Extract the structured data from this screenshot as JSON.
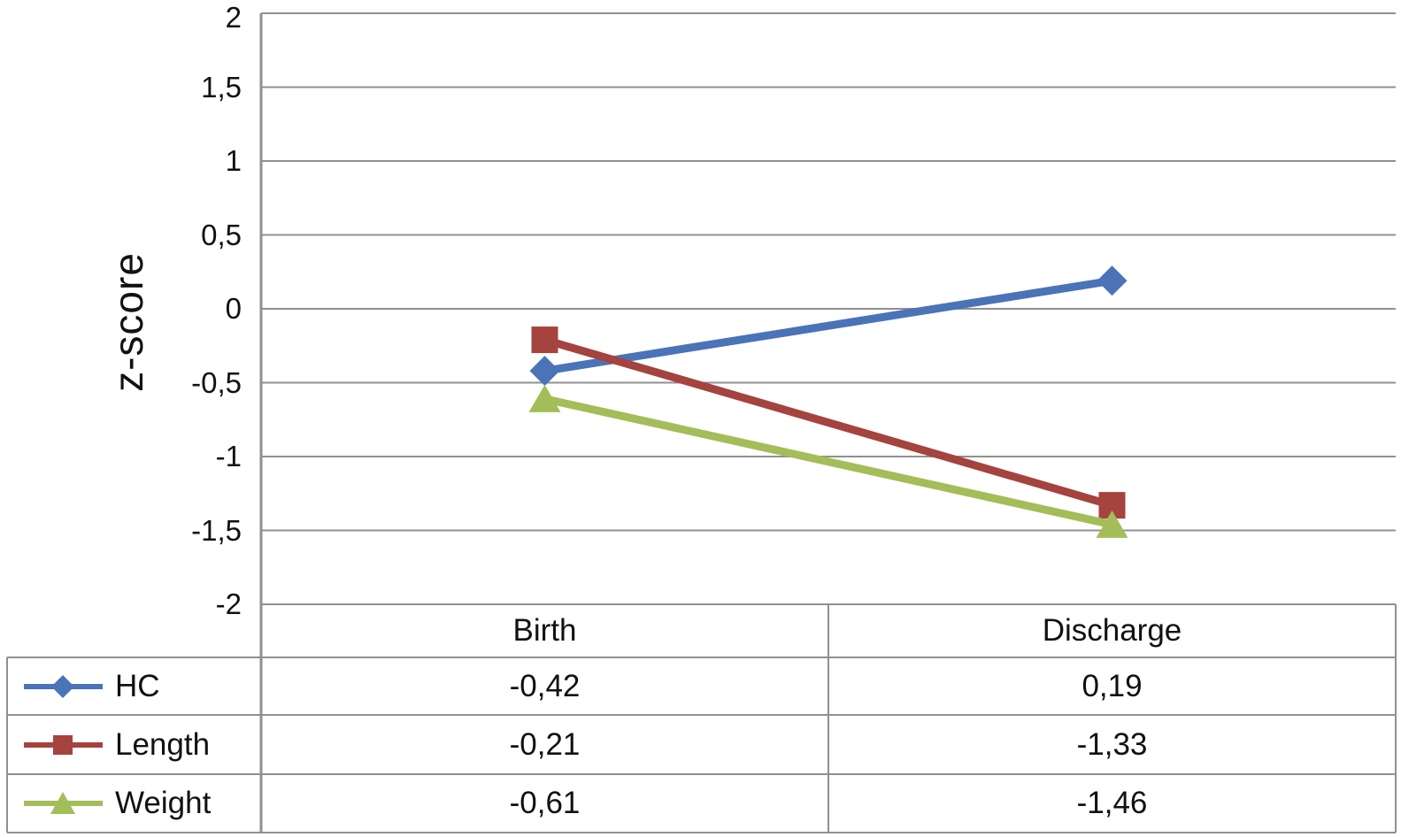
{
  "chart_data": {
    "type": "line",
    "title": "",
    "ylabel": "z-score",
    "xlabel": "",
    "categories": [
      "Birth",
      "Discharge"
    ],
    "series": [
      {
        "name": "HC",
        "marker": "diamond",
        "color": "#4a73b8",
        "values": [
          -0.42,
          0.19
        ],
        "display_values": [
          "-0,42",
          "0,19"
        ]
      },
      {
        "name": "Length",
        "marker": "square",
        "color": "#a5433e",
        "values": [
          -0.21,
          -1.33
        ],
        "display_values": [
          "-0,21",
          "-1,33"
        ]
      },
      {
        "name": "Weight",
        "marker": "triangle",
        "color": "#a3bd58",
        "values": [
          -0.61,
          -1.46
        ],
        "display_values": [
          "-0,61",
          "-1,46"
        ]
      }
    ],
    "ylim": [
      -2,
      2
    ],
    "y_ticks": [
      {
        "value": 2,
        "label": "2"
      },
      {
        "value": 1.5,
        "label": "1,5"
      },
      {
        "value": 1,
        "label": "1"
      },
      {
        "value": 0.5,
        "label": "0,5"
      },
      {
        "value": 0,
        "label": "0"
      },
      {
        "value": -0.5,
        "label": "-0,5"
      },
      {
        "value": -1,
        "label": "-1"
      },
      {
        "value": -1.5,
        "label": "-1,5"
      },
      {
        "value": -2,
        "label": "-2"
      }
    ],
    "grid": "horizontal",
    "legend_position": "table-left",
    "decimal_separator": ",",
    "grid_color": "#909090",
    "text_color": "#111111"
  }
}
